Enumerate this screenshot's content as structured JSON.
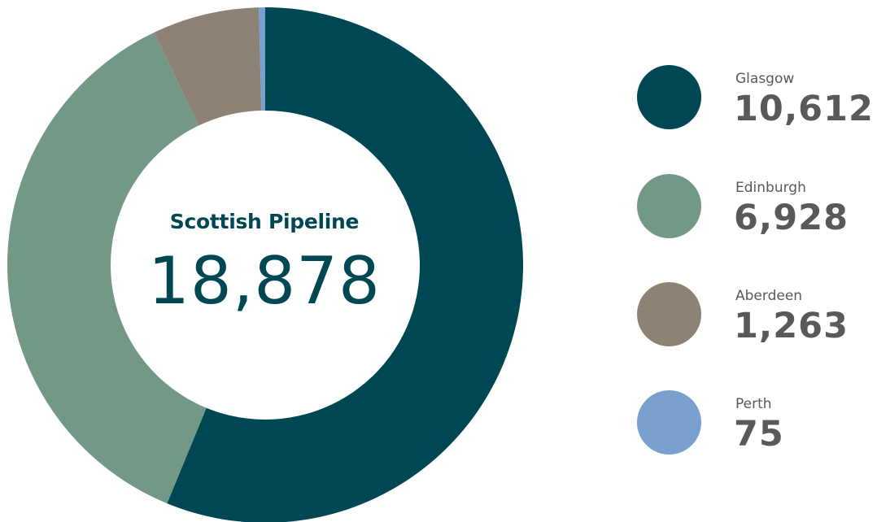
{
  "chart_data": {
    "type": "pie",
    "donut": true,
    "center": {
      "title": "Scottish Pipeline",
      "total": "18,878"
    },
    "categories": [
      "Glasgow",
      "Edinburgh",
      "Aberdeen",
      "Perth"
    ],
    "values": [
      10612,
      6928,
      1263,
      75
    ],
    "value_labels": [
      "10,612",
      "6,928",
      "1,263",
      "75"
    ],
    "colors": [
      "#004754",
      "#739886",
      "#8c8376",
      "#7aa1ce"
    ],
    "legend": "right"
  },
  "colors": {
    "center_text": "#004754",
    "legend_text": "#58595b"
  }
}
